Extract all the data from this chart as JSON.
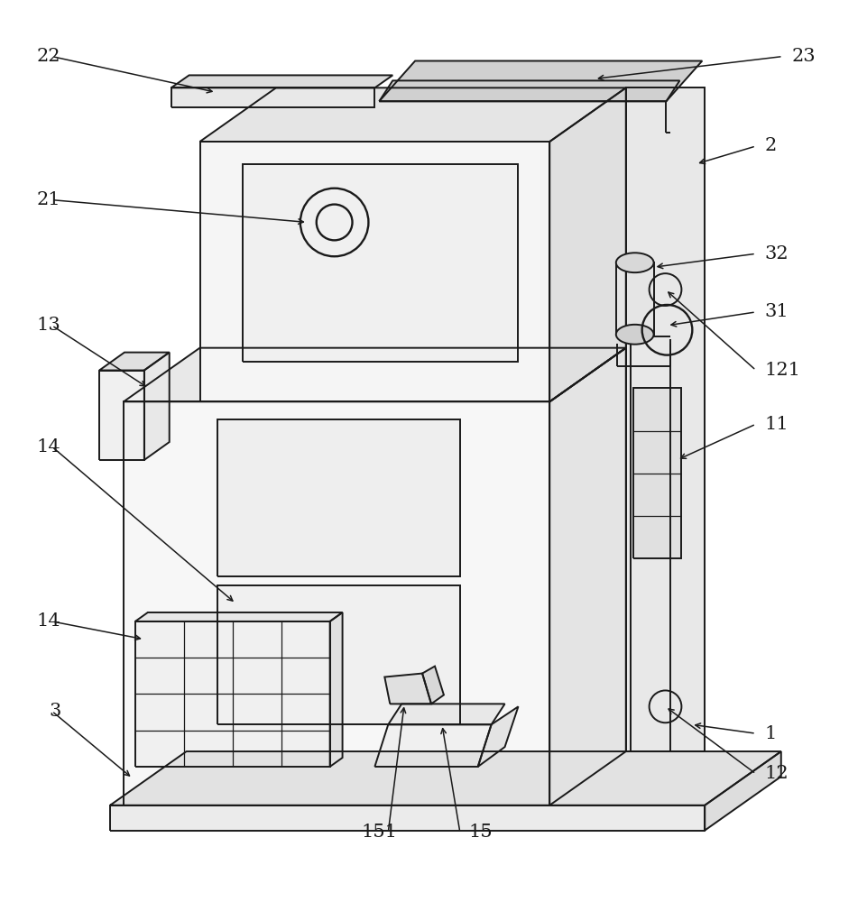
{
  "background_color": "#ffffff",
  "line_color": "#1a1a1a",
  "line_width": 1.4,
  "fig_width": 9.61,
  "fig_height": 10.0,
  "label_fontsize": 15
}
